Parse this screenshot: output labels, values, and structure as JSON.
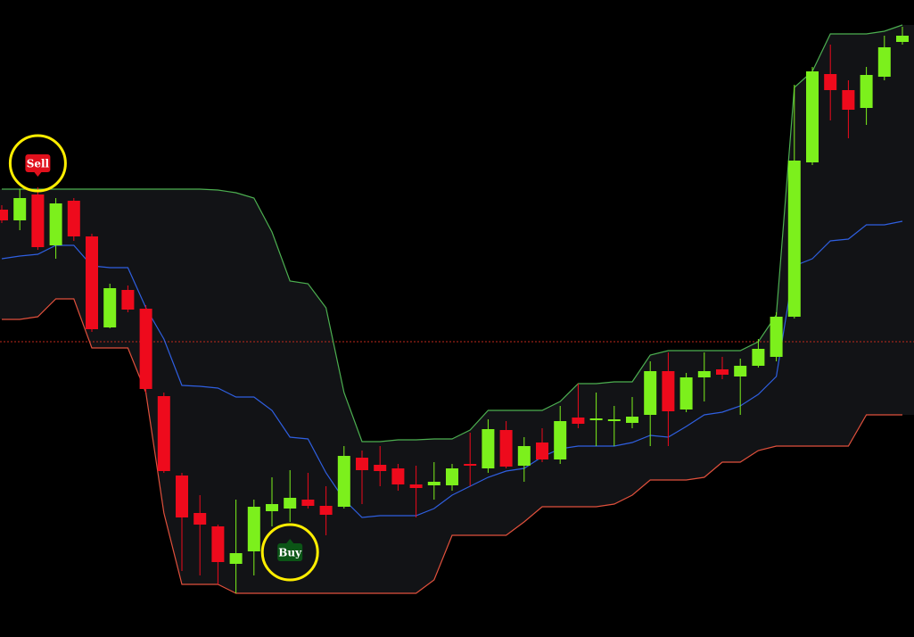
{
  "chart_data": {
    "type": "candlestick",
    "ylim": [
      0,
      714
    ],
    "up_color": "#7cf01c",
    "down_color": "#ee0a1c",
    "candles": {
      "open": [
        479,
        467,
        496,
        439,
        489,
        449,
        347,
        389,
        368,
        270,
        181,
        139,
        124,
        82,
        96,
        141,
        144,
        154,
        147,
        146,
        201,
        193,
        189,
        171,
        170,
        170,
        194,
        189,
        232,
        192,
        218,
        199,
        246,
        243,
        242,
        240,
        249,
        298,
        255,
        291,
        300,
        292,
        304,
        314,
        359,
        532,
        631,
        613,
        593,
        628,
        667
      ],
      "high": [
        484,
        502,
        504,
        492,
        492,
        452,
        396,
        394,
        372,
        274,
        184,
        159,
        126,
        154,
        154,
        179,
        187,
        184,
        169,
        214,
        209,
        214,
        194,
        192,
        196,
        194,
        229,
        244,
        242,
        224,
        234,
        259,
        284,
        274,
        259,
        269,
        309,
        319,
        296,
        319,
        314,
        312,
        334,
        364,
        619,
        639,
        664,
        624,
        639,
        674,
        684
      ],
      "low": [
        464,
        456,
        434,
        424,
        444,
        342,
        346,
        364,
        274,
        184,
        74,
        69,
        59,
        49,
        69,
        124,
        129,
        144,
        114,
        144,
        149,
        169,
        164,
        134,
        154,
        164,
        169,
        184,
        189,
        174,
        196,
        194,
        234,
        214,
        214,
        234,
        214,
        214,
        252,
        264,
        289,
        249,
        302,
        309,
        357,
        529,
        579,
        559,
        574,
        624,
        664
      ],
      "close": [
        467,
        492,
        437,
        486,
        449,
        345,
        391,
        367,
        278,
        186,
        134,
        126,
        84,
        94,
        146,
        149,
        156,
        147,
        137,
        203,
        187,
        186,
        171,
        167,
        174,
        189,
        192,
        233,
        191,
        214,
        199,
        242,
        239,
        245,
        244,
        247,
        298,
        253,
        291,
        298,
        294,
        304,
        323,
        359,
        534,
        634,
        613,
        591,
        630,
        661,
        674
      ]
    },
    "series": [
      {
        "name": "upper",
        "color": "#4caf50",
        "values": [
          502,
          502,
          502,
          502,
          502,
          502,
          502,
          502,
          502,
          502,
          502,
          502,
          501,
          498,
          492,
          454,
          399,
          396,
          369,
          274,
          219,
          219,
          221,
          221,
          222,
          222,
          232,
          254,
          254,
          254,
          254,
          264,
          284,
          284,
          286,
          286,
          316,
          321,
          321,
          321,
          321,
          321,
          331,
          361,
          616,
          634,
          676,
          676,
          676,
          679,
          686
        ]
      },
      {
        "name": "middle",
        "color": "#2f5fe0",
        "values": [
          424,
          427,
          429,
          439,
          439,
          416,
          414,
          414,
          369,
          334,
          282,
          281,
          279,
          269,
          269,
          254,
          224,
          222,
          184,
          154,
          134,
          136,
          136,
          136,
          144,
          159,
          169,
          179,
          186,
          189,
          202,
          211,
          214,
          214,
          214,
          218,
          226,
          224,
          236,
          249,
          252,
          259,
          272,
          292,
          416,
          424,
          444,
          446,
          462,
          462,
          466
        ]
      },
      {
        "name": "lower",
        "color": "#e0503c",
        "values": [
          356,
          356,
          359,
          379,
          379,
          324,
          324,
          324,
          274,
          139,
          59,
          59,
          59,
          49,
          49,
          49,
          49,
          49,
          49,
          49,
          49,
          49,
          49,
          49,
          64,
          114,
          114,
          114,
          114,
          129,
          146,
          146,
          146,
          146,
          149,
          159,
          176,
          176,
          176,
          179,
          196,
          196,
          209,
          214,
          214,
          214,
          214,
          214,
          249,
          249,
          249
        ]
      }
    ],
    "reference_line": {
      "value": 331,
      "color": "#c0281c"
    },
    "annotations": [
      {
        "text": "Sell",
        "candle": 2,
        "position": "above",
        "color": "#e0101c"
      },
      {
        "text": "Buy",
        "candle": 16,
        "position": "below",
        "color": "#0b5516"
      }
    ]
  }
}
